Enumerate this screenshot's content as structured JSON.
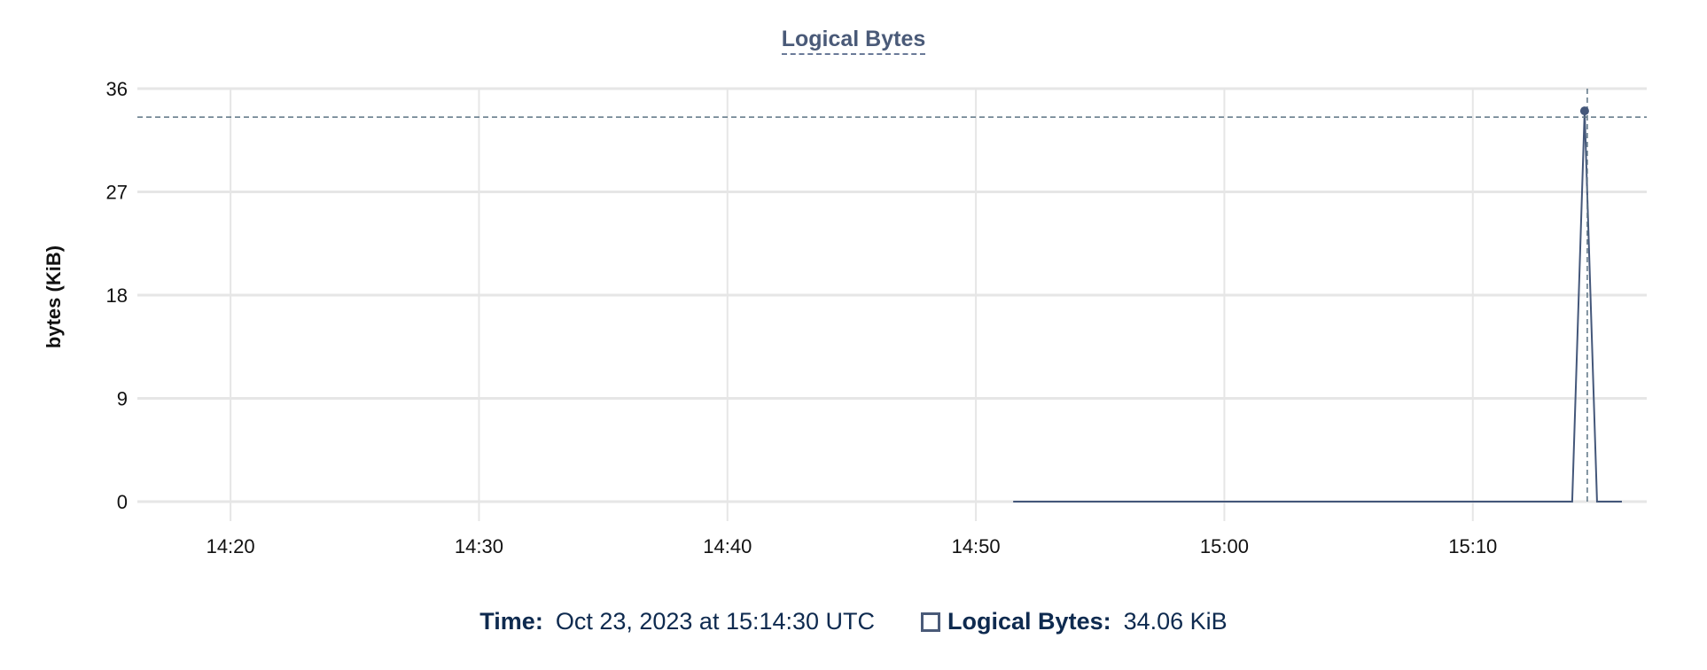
{
  "chart_data": {
    "type": "line",
    "title": "Logical Bytes",
    "xlabel": "",
    "ylabel": "bytes (KiB)",
    "xlim": [
      "14:16:15",
      "15:17:00"
    ],
    "ylim": [
      0,
      36
    ],
    "grid": true,
    "x_ticks": [
      "14:20",
      "14:30",
      "14:40",
      "14:50",
      "15:00",
      "15:10"
    ],
    "y_ticks": [
      0,
      9,
      18,
      27,
      36
    ],
    "series": [
      {
        "color": "#44577a",
        "points": [
          {
            "x": "14:51:30",
            "y": 0
          },
          {
            "x": "15:14:00",
            "y": 0
          },
          {
            "x": "15:14:30",
            "y": 34.06
          },
          {
            "x": "15:15:00",
            "y": 0
          },
          {
            "x": "15:16:00",
            "y": 0
          }
        ]
      }
    ],
    "crosshair": {
      "x": "15:14:30",
      "y": 34.06
    }
  },
  "legend": {
    "time_label": "Time:",
    "time_value": "Oct 23, 2023 at 15:14:30 UTC",
    "series_label": "Logical Bytes:",
    "series_value": "34.06 KiB"
  }
}
